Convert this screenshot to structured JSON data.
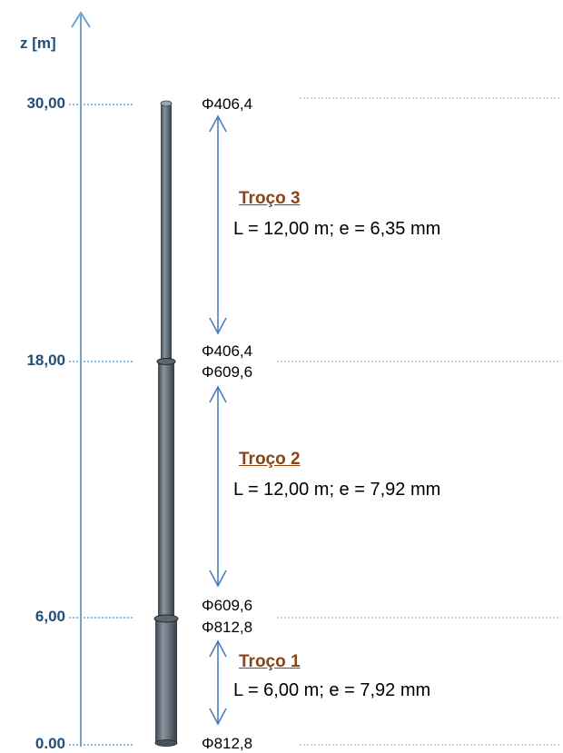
{
  "axis": {
    "title": "z [m]"
  },
  "levels": [
    "30,00",
    "18,00",
    "6,00",
    "0.00"
  ],
  "diameters": [
    "Φ406,4",
    "Φ406,4",
    "Φ609,6",
    "Φ609,6",
    "Φ812,8",
    "Φ812,8"
  ],
  "segments": [
    {
      "title": "Troço 3",
      "desc": "L = 12,00 m; e = 6,35 mm"
    },
    {
      "title": "Troço 2",
      "desc": "L = 12,00 m; e = 7,92 mm"
    },
    {
      "title": "Troço 1",
      "desc": "L = 6,00 m; e = 7,92 mm"
    }
  ],
  "colors": {
    "axis": "#6fa3d4",
    "label": "#1f4e79",
    "segment_title": "#8b4513",
    "arrow": "#4a7fc1",
    "pole": "#5c6670"
  }
}
